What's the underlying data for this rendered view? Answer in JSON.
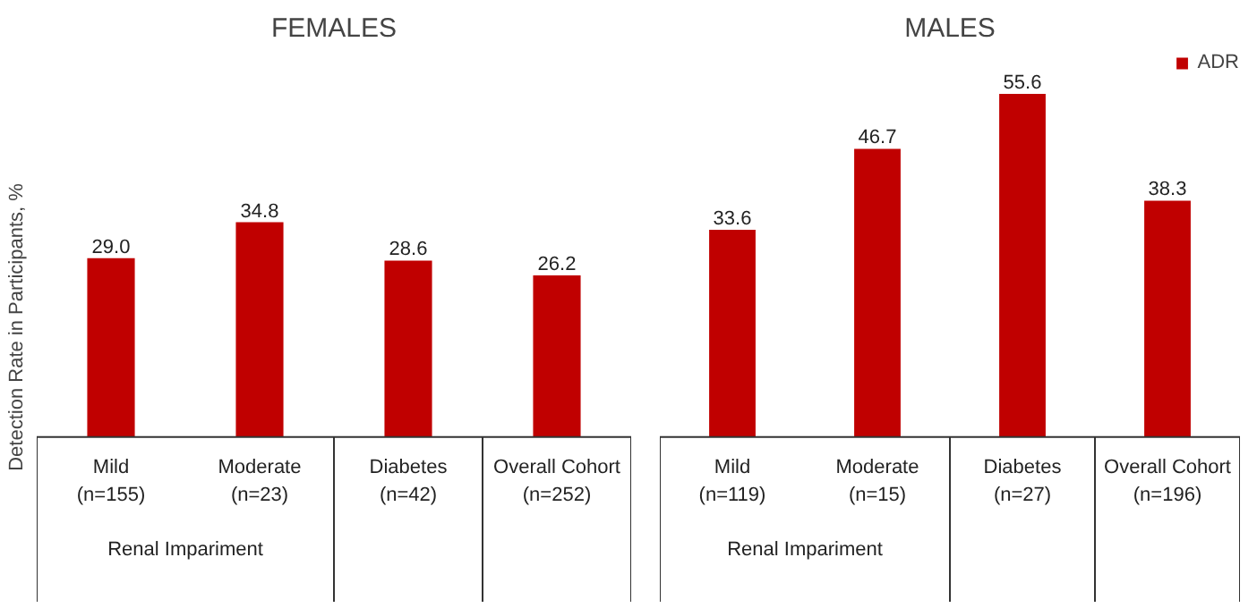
{
  "chart_data": [
    {
      "type": "bar",
      "title": "FEMALES",
      "ylabel": "Detection Rate in Participants, %",
      "categories": [
        "Mild\n(n=155)",
        "Moderate\n(n=23)",
        "Diabetes\n(n=42)",
        "Overall Cohort\n(n=252)"
      ],
      "series": [
        {
          "color": "#c00000",
          "values": [
            29.0,
            34.8,
            28.6,
            26.2
          ],
          "value_labels": [
            "29.0",
            "34.8",
            "28.6",
            "26.2"
          ]
        }
      ],
      "grid": false,
      "legend": false,
      "annotations": [
        "Renal Impariment"
      ]
    },
    {
      "type": "bar",
      "title": "MALES",
      "categories": [
        "Mild\n(n=119)",
        "Moderate\n(n=15)",
        "Diabetes\n(n=27)",
        "Overall Cohort\n(n=196)"
      ],
      "series": [
        {
          "name": "ADR",
          "color": "#c00000",
          "values": [
            33.6,
            46.7,
            55.6,
            38.3
          ],
          "value_labels": [
            "33.6",
            "46.7",
            "55.6",
            "38.3"
          ]
        }
      ],
      "grid": false,
      "legend": "top right",
      "annotations": [
        "Renal Impariment"
      ]
    }
  ]
}
